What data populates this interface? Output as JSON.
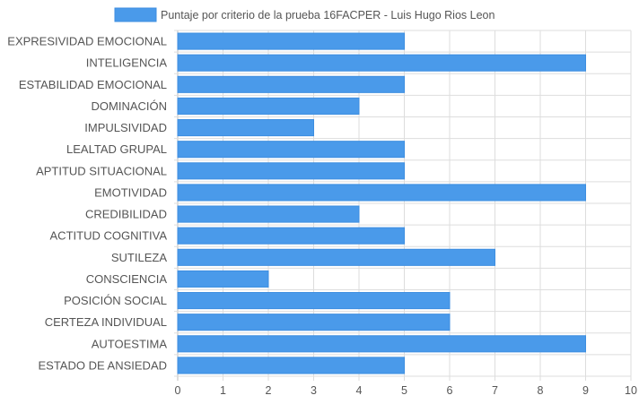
{
  "chart_data": {
    "type": "bar",
    "orientation": "horizontal",
    "categories": [
      "EXPRESIVIDAD EMOCIONAL",
      "INTELIGENCIA",
      "ESTABILIDAD EMOCIONAL",
      "DOMINACIÓN",
      "IMPULSIVIDAD",
      "LEALTAD GRUPAL",
      "APTITUD SITUACIONAL",
      "EMOTIVIDAD",
      "CREDIBILIDAD",
      "ACTITUD COGNITIVA",
      "SUTILEZA",
      "CONSCIENCIA",
      "POSICIÓN SOCIAL",
      "CERTEZA INDIVIDUAL",
      "AUTOESTIMA",
      "ESTADO DE ANSIEDAD"
    ],
    "series": [
      {
        "name": "Puntaje por criterio de la prueba 16FACPER - Luis Hugo Rios Leon",
        "values": [
          5,
          9,
          5,
          4,
          3,
          5,
          5,
          9,
          4,
          5,
          7,
          2,
          6,
          6,
          9,
          5
        ]
      }
    ],
    "xlim": [
      0,
      10
    ],
    "xticks": [
      0,
      1,
      2,
      3,
      4,
      5,
      6,
      7,
      8,
      9,
      10
    ],
    "grid": true,
    "legend_position": "top",
    "colors": {
      "bar_fill": "#4a9aea",
      "bar_stroke": "#3d8ee0",
      "grid": "#dddddd",
      "text": "#555555"
    }
  }
}
